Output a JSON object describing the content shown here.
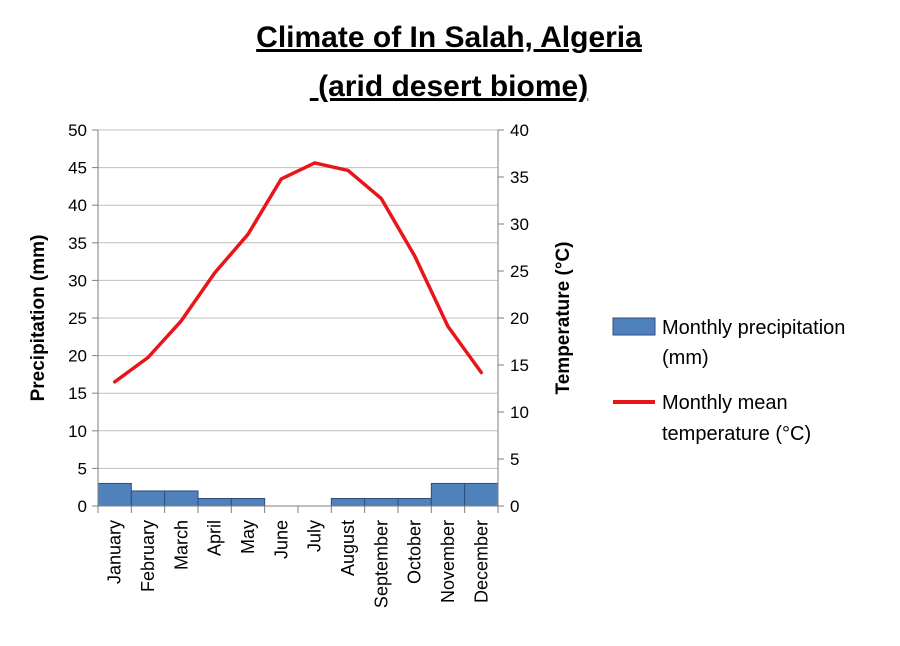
{
  "chart_data": {
    "type": "bar+line",
    "title_lines": [
      "Climate of In Salah, Algeria",
      " (arid desert biome)"
    ],
    "categories": [
      "January",
      "February",
      "March",
      "April",
      "May",
      "June",
      "July",
      "August",
      "September",
      "October",
      "November",
      "December"
    ],
    "series": [
      {
        "name": "Monthly precipitation (mm)",
        "type": "bar",
        "axis": "left",
        "color": "#4f81bd",
        "values": [
          3,
          2,
          2,
          1,
          1,
          0,
          0,
          1,
          1,
          1,
          3,
          3
        ]
      },
      {
        "name": "Monthly mean temperature (°C)",
        "type": "line",
        "axis": "right",
        "color": "#e8161b",
        "values": [
          13.2,
          15.8,
          19.7,
          24.8,
          28.9,
          34.8,
          36.5,
          35.7,
          32.7,
          26.6,
          19.1,
          14.2
        ]
      }
    ],
    "ylabel_left": "Precipitation (mm)",
    "ylabel_right": "Temperature (°C)",
    "ylim_left": [
      0,
      50
    ],
    "ylim_right": [
      0,
      40
    ],
    "yticks_left": [
      "0",
      "5",
      "10",
      "15",
      "20",
      "25",
      "30",
      "35",
      "40",
      "45",
      "50"
    ],
    "yticks_right": [
      "0",
      "5",
      "10",
      "15",
      "20",
      "25",
      "30",
      "35",
      "40"
    ],
    "grid": "horizontal",
    "legend": {
      "placement": "right",
      "entries": [
        {
          "lines": [
            "Monthly precipitation",
            "(mm)"
          ]
        },
        {
          "lines": [
            "Monthly mean",
            "temperature (°C)"
          ]
        }
      ]
    }
  }
}
